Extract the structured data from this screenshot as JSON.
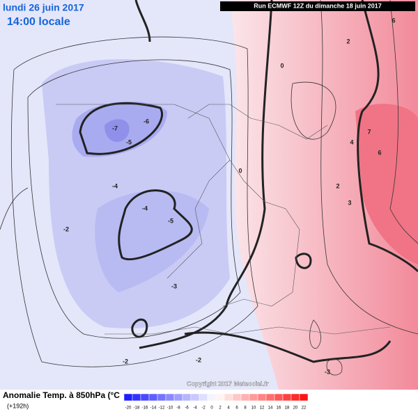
{
  "header": {
    "date": "lundi 26 juin 2017",
    "time": "14:00 locale",
    "run": "Run ECMWF 12Z du dimanche 18 juin 2017"
  },
  "footer": {
    "title": "Anomalie Temp. à 850hPa (°C",
    "lead": "(+192h)",
    "copyright": "Copyright 2017 Meteociel.fr"
  },
  "legend": {
    "labels": [
      "-20",
      "-18",
      "-16",
      "-14",
      "-12",
      "-10",
      "-8",
      "-6",
      "-4",
      "-2",
      "0",
      "2",
      "4",
      "6",
      "8",
      "10",
      "12",
      "14",
      "16",
      "18",
      "20",
      "22"
    ]
  },
  "contour_labels": [
    "-7",
    "-6",
    "-5",
    "-5",
    "-4",
    "-4",
    "-3",
    "-2",
    "-2",
    "0",
    "0",
    "2",
    "2",
    "3",
    "4",
    "6",
    "7",
    "6",
    "-2",
    "-3"
  ]
}
